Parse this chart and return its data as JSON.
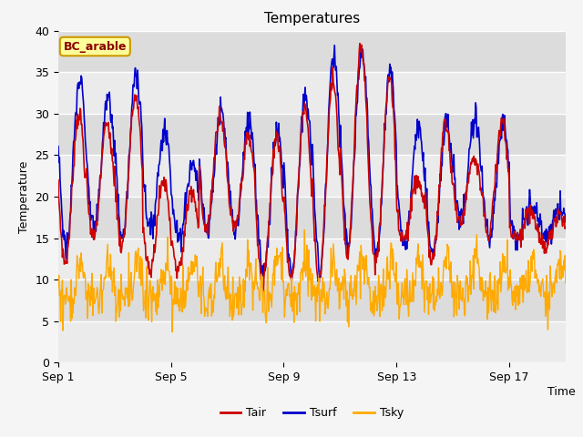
{
  "title": "Temperatures",
  "xlabel": "Time",
  "ylabel": "Temperature",
  "annotation": "BC_arable",
  "ylim": [
    0,
    40
  ],
  "yticks": [
    0,
    5,
    10,
    15,
    20,
    25,
    30,
    35,
    40
  ],
  "xtick_labels": [
    "Sep 1",
    "Sep 5",
    "Sep 9",
    "Sep 13",
    "Sep 17"
  ],
  "xtick_positions": [
    0,
    4,
    8,
    12,
    16
  ],
  "legend_labels": [
    "Tair",
    "Tsurf",
    "Tsky"
  ],
  "tair_color": "#cc0000",
  "tsurf_color": "#0000cc",
  "tsky_color": "#ffaa00",
  "bg_color": "#e8e8e8",
  "fig_color": "#f5f5f5",
  "n_days": 18,
  "ppd": 48,
  "day_peaks_air": [
    30,
    29,
    32,
    22,
    21,
    30,
    27,
    27,
    31,
    34,
    38,
    34,
    22,
    29,
    25,
    29,
    18,
    18
  ],
  "day_mins_air": [
    12,
    15,
    14,
    11,
    11,
    16,
    16,
    10,
    10,
    10,
    13,
    12,
    15,
    12,
    17,
    15,
    15,
    14
  ],
  "day_peaks_surf": [
    34,
    32,
    35,
    28,
    24,
    30,
    29,
    28,
    32,
    37,
    38,
    35,
    28,
    29,
    29,
    29,
    19,
    19
  ],
  "day_mins_surf": [
    14,
    16,
    15,
    16,
    15,
    16,
    16,
    11,
    11,
    11,
    14,
    13,
    14,
    13,
    17,
    15,
    15,
    15
  ]
}
